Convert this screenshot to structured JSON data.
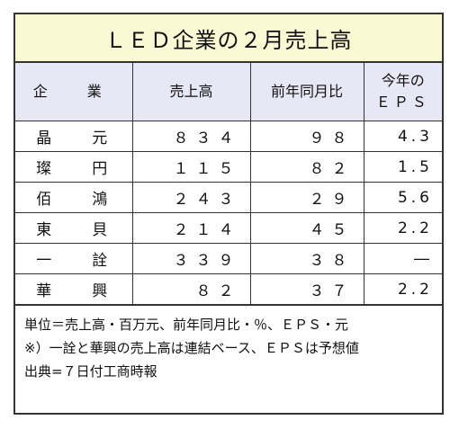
{
  "title": "ＬＥＤ企業の２月売上高",
  "headers": {
    "company": "企　業",
    "sales": "売上高",
    "yoy": "前年同月比",
    "eps_line1": "今年の",
    "eps_line2": "ＥＰＳ"
  },
  "rows": [
    {
      "company": "晶　元",
      "sales": "８３４",
      "yoy": "９８",
      "eps": "4.3"
    },
    {
      "company": "璨　円",
      "sales": "１１５",
      "yoy": "８２",
      "eps": "1.5"
    },
    {
      "company": "佰　鴻",
      "sales": "２４３",
      "yoy": "２９",
      "eps": "5.6"
    },
    {
      "company": "東　貝",
      "sales": "２１４",
      "yoy": "４５",
      "eps": "2.2"
    },
    {
      "company": "一　詮",
      "sales": "３３９",
      "yoy": "３８",
      "eps": "―"
    },
    {
      "company": "華　興",
      "sales": "８２",
      "yoy": "３７",
      "eps": "2.2"
    }
  ],
  "notes": [
    "単位＝売上高・百万元、前年同月比・％、ＥＰＳ・元",
    "※）一詮と華興の売上高は連結ベース、ＥＰＳは予想値",
    "出典=７日付工商時報"
  ]
}
